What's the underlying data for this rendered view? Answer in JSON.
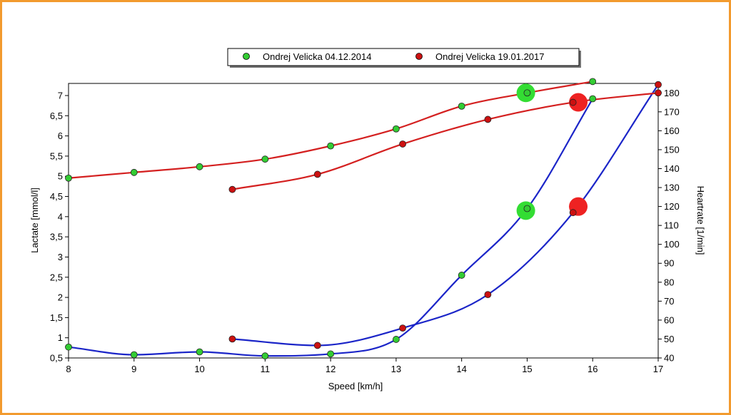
{
  "chart_data": {
    "type": "line",
    "title": "",
    "xlabel": "Speed [km/h]",
    "ylabel": "Lactate [mmol/l]",
    "y2label": "Heartrate [1/min]",
    "xlim": [
      8,
      17
    ],
    "ylim": [
      0.5,
      7.3
    ],
    "y2lim": [
      40,
      185
    ],
    "x_ticks": [
      "8",
      "9",
      "10",
      "11",
      "12",
      "13",
      "14",
      "15",
      "16",
      "17"
    ],
    "y_ticks": [
      "0,5",
      "1",
      "1,5",
      "2",
      "2,5",
      "3",
      "3,5",
      "4",
      "4,5",
      "5",
      "5,5",
      "6",
      "6,5",
      "7"
    ],
    "y2_ticks": [
      "40",
      "50",
      "60",
      "70",
      "80",
      "90",
      "100",
      "110",
      "120",
      "130",
      "140",
      "150",
      "160",
      "170",
      "180"
    ],
    "legend_position": "top",
    "legend": [
      {
        "name": "Ondrej Velicka 04.12.2014",
        "color": "#33cc33"
      },
      {
        "name": "Ondrej Velicka 19.01.2017",
        "color": "#cc1111"
      }
    ],
    "colors": {
      "lactate_line": "#1b25c8",
      "heartrate_line": "#d42020",
      "green_marker": "#33cc33",
      "red_marker": "#cc1111",
      "green_threshold": "#33dd33",
      "red_threshold": "#ee2222"
    },
    "series": [
      {
        "name": "Ondrej Velicka 04.12.2014",
        "measure": "lactate",
        "axis": "left",
        "marker": "green",
        "points": [
          [
            8,
            0.77
          ],
          [
            9,
            0.58
          ],
          [
            10,
            0.65
          ],
          [
            11,
            0.55
          ],
          [
            12,
            0.6
          ],
          [
            13,
            0.96
          ],
          [
            14,
            2.55
          ],
          [
            15,
            4.2
          ],
          [
            16,
            6.92
          ]
        ]
      },
      {
        "name": "Ondrej Velicka 19.01.2017",
        "measure": "lactate",
        "axis": "left",
        "marker": "red",
        "points": [
          [
            10.5,
            0.97
          ],
          [
            11.8,
            0.81
          ],
          [
            13.1,
            1.24
          ],
          [
            14.4,
            2.07
          ],
          [
            15.7,
            4.1
          ],
          [
            17,
            7.27
          ]
        ]
      },
      {
        "name": "Ondrej Velicka 04.12.2014",
        "measure": "heartrate",
        "axis": "right",
        "marker": "green",
        "points": [
          [
            8,
            135
          ],
          [
            9,
            138
          ],
          [
            10,
            141
          ],
          [
            11,
            145
          ],
          [
            12,
            152
          ],
          [
            13,
            161
          ],
          [
            14,
            173
          ],
          [
            15,
            180
          ],
          [
            16,
            186
          ]
        ]
      },
      {
        "name": "Ondrej Velicka 19.01.2017",
        "measure": "heartrate",
        "axis": "right",
        "marker": "red",
        "points": [
          [
            10.5,
            129
          ],
          [
            11.8,
            137
          ],
          [
            13.1,
            153
          ],
          [
            14.4,
            166
          ],
          [
            15.7,
            175
          ],
          [
            17,
            180
          ]
        ]
      }
    ],
    "thresholds": [
      {
        "marker": "green",
        "axis": "left",
        "x": 14.98,
        "y": 4.15
      },
      {
        "marker": "green",
        "axis": "right",
        "x": 14.98,
        "y": 180
      },
      {
        "marker": "red",
        "axis": "left",
        "x": 15.78,
        "y": 4.25
      },
      {
        "marker": "red",
        "axis": "right",
        "x": 15.78,
        "y": 175
      }
    ]
  }
}
